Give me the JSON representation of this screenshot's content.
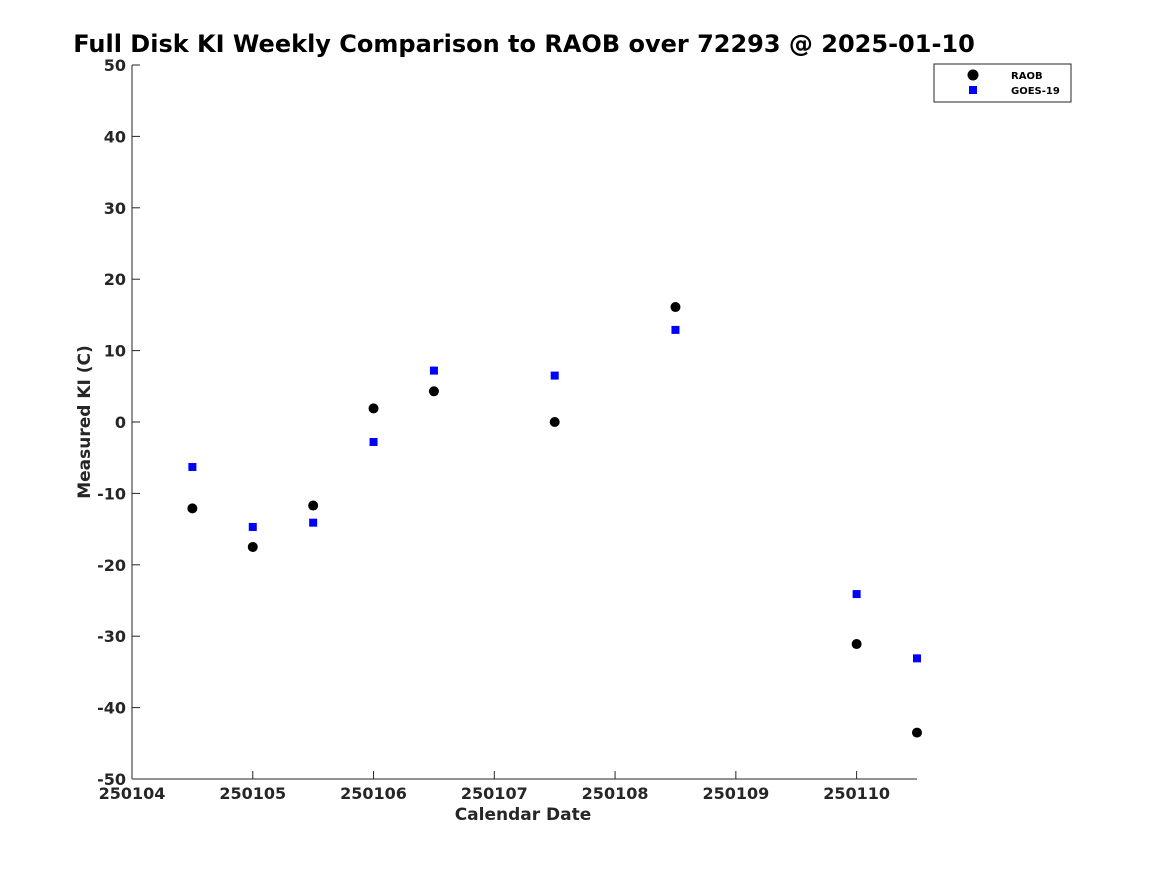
{
  "chart_data": {
    "type": "scatter",
    "title": "Full Disk KI Weekly Comparison to RAOB over 72293 @ 2025-01-10",
    "xlabel": "Calendar Date",
    "ylabel": "Measured KI (C)",
    "xlim": [
      250104,
      250110.5
    ],
    "ylim": [
      -50,
      50
    ],
    "x_ticks": [
      250104,
      250105,
      250106,
      250107,
      250108,
      250109,
      250110
    ],
    "x_tick_labels": [
      "250104",
      "250105",
      "250106",
      "250107",
      "250108",
      "250109",
      "250110"
    ],
    "y_ticks": [
      50,
      40,
      30,
      20,
      10,
      0,
      -10,
      -20,
      -30,
      -40,
      -50
    ],
    "y_tick_labels": [
      "50",
      "40",
      "30",
      "20",
      "10",
      "0",
      "-10",
      "-20",
      "-30",
      "-40",
      "-50"
    ],
    "grid": false,
    "legend_position": "top-right",
    "series": [
      {
        "name": "RAOB",
        "marker": "circle",
        "color": "#000000",
        "x": [
          250104.5,
          250105,
          250105.5,
          250106,
          250106.5,
          250107.5,
          250108.5,
          250110,
          250110.5
        ],
        "y": [
          -12.1,
          -17.5,
          -11.7,
          1.9,
          4.3,
          0.0,
          16.1,
          -31.1,
          -43.5
        ]
      },
      {
        "name": "GOES-19",
        "marker": "square",
        "color": "#0000ff",
        "x": [
          250104.5,
          250105,
          250105.5,
          250106,
          250106.5,
          250107.5,
          250108.5,
          250110,
          250110.5
        ],
        "y": [
          -6.3,
          -14.7,
          -14.1,
          -2.8,
          7.2,
          6.5,
          12.9,
          -24.1,
          -33.1
        ]
      }
    ]
  }
}
